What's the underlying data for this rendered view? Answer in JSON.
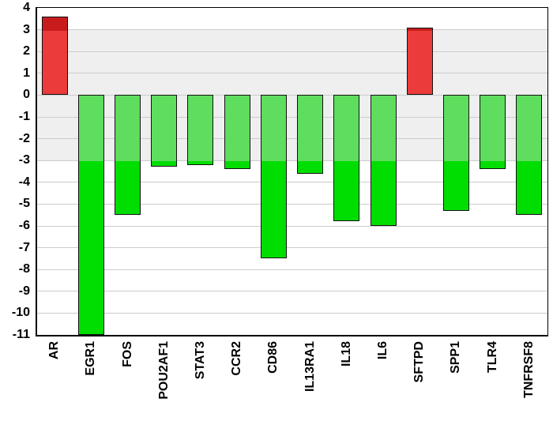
{
  "chart_data": {
    "type": "bar",
    "title": "",
    "xlabel": "",
    "ylabel": "",
    "categories": [
      "AR",
      "EGR1",
      "FOS",
      "POU2AF1",
      "STAT3",
      "CCR2",
      "CD86",
      "IL13RA1",
      "IL18",
      "IL6",
      "SFTPD",
      "SPP1",
      "TLR4",
      "TNFRSF8"
    ],
    "values": [
      3.6,
      -11.0,
      -5.5,
      -3.3,
      -3.2,
      -3.4,
      -7.5,
      -3.6,
      -5.8,
      -6.0,
      3.1,
      -5.3,
      -3.4,
      -5.5
    ],
    "ylim": [
      -11,
      4
    ],
    "ytick_step": 1,
    "grid": true,
    "legend": "none",
    "threshold_band": [
      -3,
      3
    ],
    "colors": {
      "up_bar_in_band": "#ec3b3b",
      "up_bar_out_band": "#c81c1c",
      "down_bar_in_band": "#5fdd5f",
      "down_bar_out_band": "#00dd00",
      "bar_border": "#111111",
      "band_fill": "#efefef",
      "grid_line": "#cccccc",
      "axis": "#000000",
      "background": "#ffffff"
    }
  }
}
